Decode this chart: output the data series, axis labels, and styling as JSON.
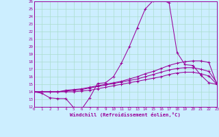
{
  "xlabel": "Windchill (Refroidissement éolien,°C)",
  "background_color": "#cceeff",
  "grid_color": "#aaddcc",
  "line_color": "#990099",
  "xlim": [
    0,
    23
  ],
  "ylim": [
    12,
    26
  ],
  "xticks": [
    0,
    1,
    2,
    3,
    4,
    5,
    6,
    7,
    8,
    9,
    10,
    11,
    12,
    13,
    14,
    15,
    16,
    17,
    18,
    19,
    20,
    21,
    22,
    23
  ],
  "yticks": [
    12,
    13,
    14,
    15,
    16,
    17,
    18,
    19,
    20,
    21,
    22,
    23,
    24,
    25,
    26
  ],
  "series": [
    [
      14.0,
      13.8,
      13.2,
      13.1,
      13.1,
      11.9,
      11.7,
      13.2,
      15.1,
      15.2,
      16.0,
      17.8,
      20.0,
      22.5,
      25.0,
      26.1,
      26.2,
      25.8,
      19.2,
      17.6,
      17.5,
      16.2,
      15.2,
      15.0
    ],
    [
      14.0,
      14.0,
      14.0,
      14.0,
      14.2,
      14.3,
      14.4,
      14.6,
      14.8,
      15.0,
      15.2,
      15.4,
      15.7,
      16.0,
      16.4,
      16.7,
      17.1,
      17.5,
      17.8,
      18.0,
      18.1,
      18.1,
      17.9,
      15.0
    ],
    [
      14.0,
      14.0,
      14.0,
      14.0,
      14.1,
      14.2,
      14.3,
      14.5,
      14.7,
      14.9,
      15.1,
      15.3,
      15.5,
      15.7,
      16.0,
      16.3,
      16.6,
      16.9,
      17.1,
      17.2,
      17.2,
      17.0,
      16.7,
      15.2
    ],
    [
      14.0,
      14.0,
      14.0,
      14.0,
      14.0,
      14.0,
      14.1,
      14.2,
      14.4,
      14.6,
      14.8,
      15.0,
      15.2,
      15.4,
      15.6,
      15.8,
      16.0,
      16.3,
      16.5,
      16.6,
      16.6,
      16.4,
      16.1,
      15.0
    ]
  ]
}
